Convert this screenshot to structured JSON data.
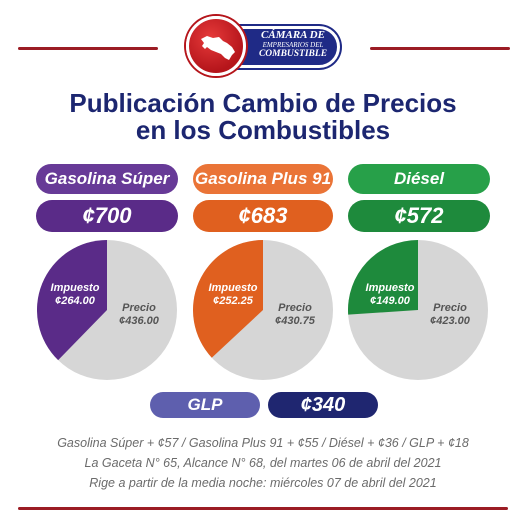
{
  "logo": {
    "line1": "CÁMARA DE",
    "line2": "EMPRESARIOS DEL",
    "line3": "COMBUSTIBLE",
    "icon": "costa-rica-map-icon",
    "colors": {
      "red": "#b5151b",
      "blue": "#1f2a86"
    }
  },
  "title": {
    "line1": "Publicación Cambio de Precios",
    "line2": "en los Combustibles"
  },
  "fuels": [
    {
      "name": "Gasolina Súper",
      "price": "¢700",
      "tax_label": "Impuesto",
      "tax_value": "¢264.00",
      "price_label": "Precio",
      "price_value": "¢436.00",
      "tax_fraction": 0.3771,
      "color": "#5a2b88"
    },
    {
      "name": "Gasolina Plus 91",
      "price": "¢683",
      "tax_label": "Impuesto",
      "tax_value": "¢252.25",
      "price_label": "Precio",
      "price_value": "¢430.75",
      "tax_fraction": 0.3693,
      "color": "#e0601f"
    },
    {
      "name": "Diésel",
      "price": "¢572",
      "tax_label": "Impuesto",
      "tax_value": "¢149.00",
      "price_label": "Precio",
      "price_value": "¢423.00",
      "tax_fraction": 0.2605,
      "color": "#1e8a3c"
    }
  ],
  "glp": {
    "name": "GLP",
    "price": "¢340"
  },
  "footer": {
    "line1": "Gasolina Súper + ¢57 / Gasolina Plus 91 + ¢55 / Diésel + ¢36 / GLP + ¢18",
    "line2": "La Gaceta N° 65, Alcance N° 68, del martes 06 de abril del 2021",
    "line3": "Rige a partir de la media noche: miércoles 07 de abril del 2021"
  }
}
